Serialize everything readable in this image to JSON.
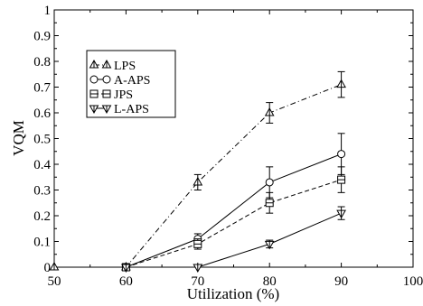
{
  "chart_data": {
    "type": "line",
    "title": "",
    "xlabel": "Utilization (%)",
    "ylabel": "VQM",
    "xlim": [
      50,
      100
    ],
    "ylim": [
      0,
      1
    ],
    "xticks": [
      50,
      60,
      70,
      80,
      90,
      100
    ],
    "yticks": [
      0,
      0.1,
      0.2,
      0.3,
      0.4,
      0.5,
      0.6,
      0.7,
      0.8,
      0.9,
      1
    ],
    "xtick_labels": [
      "50",
      "60",
      "70",
      "80",
      "90",
      "100"
    ],
    "ytick_labels": [
      "0",
      "0.1",
      "0.2",
      "0.3",
      "0.4",
      "0.5",
      "0.6",
      "0.7",
      "0.8",
      "0.9",
      "1"
    ],
    "grid": false,
    "legend_position": "top-left",
    "series": [
      {
        "name": "LPS",
        "marker": "triangle-up",
        "line_style": "dash-dot",
        "points": [
          {
            "x": 50,
            "y": 0,
            "err": 0
          },
          {
            "x": 60,
            "y": 0,
            "err": 0
          },
          {
            "x": 70,
            "y": 0.33,
            "err": 0.03
          },
          {
            "x": 80,
            "y": 0.6,
            "err": 0.04
          },
          {
            "x": 90,
            "y": 0.71,
            "err": 0.05
          }
        ]
      },
      {
        "name": "A-APS",
        "marker": "circle",
        "line_style": "solid",
        "points": [
          {
            "x": 60,
            "y": 0,
            "err": 0
          },
          {
            "x": 70,
            "y": 0.11,
            "err": 0.02
          },
          {
            "x": 80,
            "y": 0.33,
            "err": 0.06
          },
          {
            "x": 90,
            "y": 0.44,
            "err": 0.08
          }
        ]
      },
      {
        "name": "JPS",
        "marker": "square",
        "line_style": "dashed",
        "points": [
          {
            "x": 60,
            "y": 0,
            "err": 0
          },
          {
            "x": 70,
            "y": 0.09,
            "err": 0.02
          },
          {
            "x": 80,
            "y": 0.25,
            "err": 0.04
          },
          {
            "x": 90,
            "y": 0.34,
            "err": 0.05
          }
        ]
      },
      {
        "name": "L-APS",
        "marker": "triangle-down",
        "line_style": "solid",
        "points": [
          {
            "x": 60,
            "y": 0,
            "err": 0
          },
          {
            "x": 70,
            "y": 0,
            "err": 0
          },
          {
            "x": 80,
            "y": 0.09,
            "err": 0.015
          },
          {
            "x": 90,
            "y": 0.21,
            "err": 0.025
          }
        ]
      }
    ]
  }
}
